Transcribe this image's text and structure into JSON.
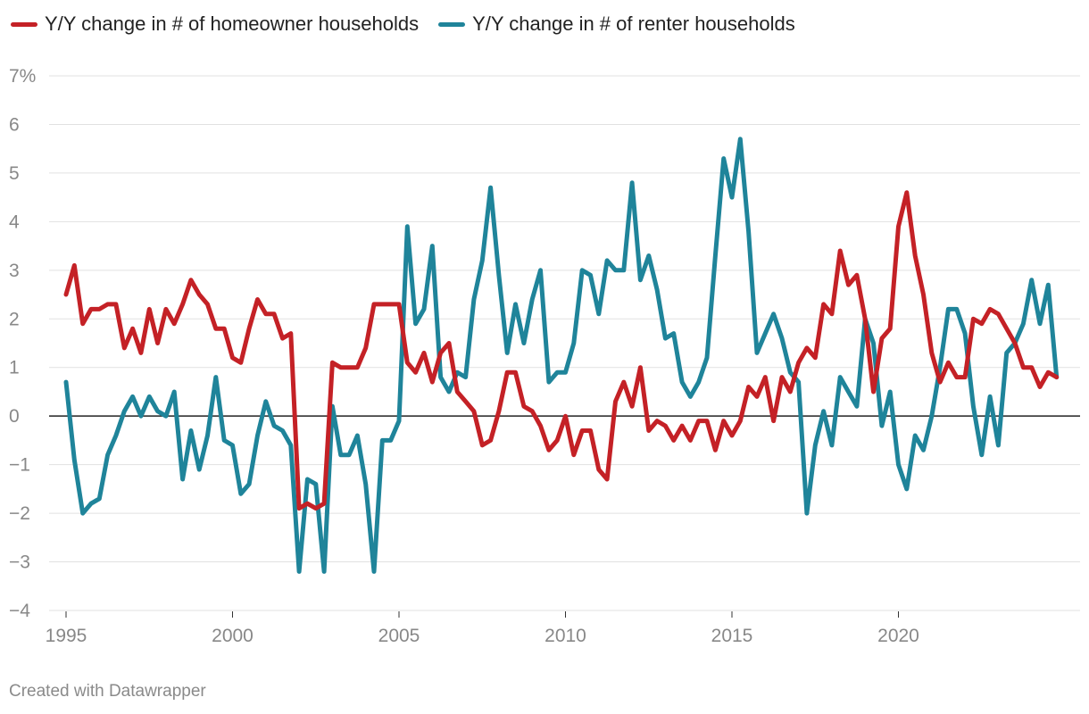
{
  "chart_data": {
    "type": "line",
    "title": "",
    "xlabel": "",
    "ylabel": "",
    "xlim": [
      1995,
      2025
    ],
    "ylim": [
      -4,
      7
    ],
    "x_ticks": [
      1995,
      2000,
      2005,
      2010,
      2015,
      2020
    ],
    "y_ticks": [
      -4,
      -3,
      -2,
      -1,
      0,
      1,
      2,
      3,
      4,
      5,
      6,
      7
    ],
    "y_tick_labels": [
      "−4",
      "−3",
      "−2",
      "−1",
      "0",
      "1",
      "2",
      "3",
      "4",
      "5",
      "6",
      "7%"
    ],
    "grid": "horizontal",
    "legend_position": "top-left",
    "x": [
      1995.0,
      1995.25,
      1995.5,
      1995.75,
      1996.0,
      1996.25,
      1996.5,
      1996.75,
      1997.0,
      1997.25,
      1997.5,
      1997.75,
      1998.0,
      1998.25,
      1998.5,
      1998.75,
      1999.0,
      1999.25,
      1999.5,
      1999.75,
      2000.0,
      2000.25,
      2000.5,
      2000.75,
      2001.0,
      2001.25,
      2001.5,
      2001.75,
      2002.0,
      2002.25,
      2002.5,
      2002.75,
      2003.0,
      2003.25,
      2003.5,
      2003.75,
      2004.0,
      2004.25,
      2004.5,
      2004.75,
      2005.0,
      2005.25,
      2005.5,
      2005.75,
      2006.0,
      2006.25,
      2006.5,
      2006.75,
      2007.0,
      2007.25,
      2007.5,
      2007.75,
      2008.0,
      2008.25,
      2008.5,
      2008.75,
      2009.0,
      2009.25,
      2009.5,
      2009.75,
      2010.0,
      2010.25,
      2010.5,
      2010.75,
      2011.0,
      2011.25,
      2011.5,
      2011.75,
      2012.0,
      2012.25,
      2012.5,
      2012.75,
      2013.0,
      2013.25,
      2013.5,
      2013.75,
      2014.0,
      2014.25,
      2014.5,
      2014.75,
      2015.0,
      2015.25,
      2015.5,
      2015.75,
      2016.0,
      2016.25,
      2016.5,
      2016.75,
      2017.0,
      2017.25,
      2017.5,
      2017.75,
      2018.0,
      2018.25,
      2018.5,
      2018.75,
      2019.0,
      2019.25,
      2019.5,
      2019.75,
      2020.0,
      2020.25,
      2020.5,
      2020.75,
      2021.0,
      2021.25,
      2021.5,
      2021.75,
      2022.0,
      2022.25,
      2022.5,
      2022.75,
      2023.0,
      2023.25,
      2023.5,
      2023.75,
      2024.0,
      2024.25,
      2024.5,
      2024.75
    ],
    "series": [
      {
        "name": "Y/Y change in # of homeowner households",
        "color": "#c42126",
        "values": [
          2.5,
          3.1,
          1.9,
          2.2,
          2.2,
          2.3,
          2.3,
          1.4,
          1.8,
          1.3,
          2.2,
          1.5,
          2.2,
          1.9,
          2.3,
          2.8,
          2.5,
          2.3,
          1.8,
          1.8,
          1.2,
          1.1,
          1.8,
          2.4,
          2.1,
          2.1,
          1.6,
          1.7,
          -1.9,
          -1.8,
          -1.9,
          -1.8,
          1.1,
          1.0,
          1.0,
          1.0,
          1.4,
          2.3,
          2.3,
          2.3,
          2.3,
          1.1,
          0.9,
          1.3,
          0.7,
          1.3,
          1.5,
          0.5,
          0.3,
          0.1,
          -0.6,
          -0.5,
          0.1,
          0.9,
          0.9,
          0.2,
          0.1,
          -0.2,
          -0.7,
          -0.5,
          0.0,
          -0.8,
          -0.3,
          -0.3,
          -1.1,
          -1.3,
          0.3,
          0.7,
          0.2,
          1.0,
          -0.3,
          -0.1,
          -0.2,
          -0.5,
          -0.2,
          -0.5,
          -0.1,
          -0.1,
          -0.7,
          -0.1,
          -0.4,
          -0.1,
          0.6,
          0.4,
          0.8,
          -0.1,
          0.8,
          0.5,
          1.1,
          1.4,
          1.2,
          2.3,
          2.1,
          3.4,
          2.7,
          2.9,
          2.0,
          0.5,
          1.6,
          1.8,
          3.9,
          4.6,
          3.3,
          2.5,
          1.3,
          0.7,
          1.1,
          0.8,
          0.8,
          2.0,
          1.9,
          2.2,
          2.1,
          1.8,
          1.5,
          1.0,
          1.0,
          0.6,
          0.9,
          0.8
        ]
      },
      {
        "name": "Y/Y change in # of renter households",
        "color": "#1f849a",
        "values": [
          0.7,
          -0.9,
          -2.0,
          -1.8,
          -1.7,
          -0.8,
          -0.4,
          0.1,
          0.4,
          0.0,
          0.4,
          0.1,
          0.0,
          0.5,
          -1.3,
          -0.3,
          -1.1,
          -0.4,
          0.8,
          -0.5,
          -0.6,
          -1.6,
          -1.4,
          -0.4,
          0.3,
          -0.2,
          -0.3,
          -0.6,
          -3.2,
          -1.3,
          -1.4,
          -3.2,
          0.2,
          -0.8,
          -0.8,
          -0.4,
          -1.4,
          -3.2,
          -0.5,
          -0.5,
          -0.1,
          3.9,
          1.9,
          2.2,
          3.5,
          0.8,
          0.5,
          0.9,
          0.8,
          2.4,
          3.2,
          4.7,
          2.9,
          1.3,
          2.3,
          1.5,
          2.4,
          3.0,
          0.7,
          0.9,
          0.9,
          1.5,
          3.0,
          2.9,
          2.1,
          3.2,
          3.0,
          3.0,
          4.8,
          2.8,
          3.3,
          2.6,
          1.6,
          1.7,
          0.7,
          0.4,
          0.7,
          1.2,
          3.3,
          5.3,
          4.5,
          5.7,
          3.8,
          1.3,
          1.7,
          2.1,
          1.6,
          0.9,
          0.7,
          -2.0,
          -0.6,
          0.1,
          -0.6,
          0.8,
          0.5,
          0.2,
          2.0,
          1.5,
          -0.2,
          0.5,
          -1.0,
          -1.5,
          -0.4,
          -0.7,
          0.0,
          1.0,
          2.2,
          2.2,
          1.7,
          0.2,
          -0.8,
          0.4,
          -0.6,
          1.3,
          1.5,
          1.9,
          2.8,
          1.9,
          2.7,
          0.8
        ]
      }
    ]
  },
  "footer": {
    "credit": "Created with Datawrapper"
  }
}
